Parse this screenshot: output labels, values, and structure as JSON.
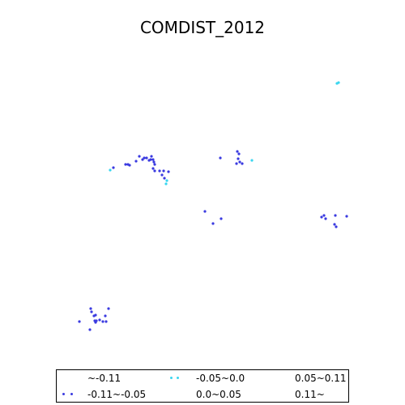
{
  "title": "COMDIST_2012",
  "legend": [
    {
      "label": "~-0.11",
      "color": ""
    },
    {
      "label": "-0.11~-0.05",
      "color": "#3a3ae0"
    },
    {
      "label": "-0.05~0.0",
      "color": "#3ad6f0"
    },
    {
      "label": "0.0~0.05",
      "color": ""
    },
    {
      "label": "0.05~0.11",
      "color": ""
    },
    {
      "label": "0.11~",
      "color": ""
    }
  ],
  "chart_data": {
    "type": "scatter",
    "series": [
      {
        "color": "#3a3ae0",
        "points": [
          [
            140,
            207
          ],
          [
            155,
            203
          ],
          [
            158,
            203
          ],
          [
            160,
            204
          ],
          [
            168,
            199
          ],
          [
            172,
            193
          ],
          [
            176,
            197
          ],
          [
            178,
            195
          ],
          [
            181,
            195
          ],
          [
            184,
            198
          ],
          [
            186,
            197
          ],
          [
            187,
            193
          ],
          [
            189,
            197
          ],
          [
            190,
            200
          ],
          [
            191,
            203
          ],
          [
            189,
            208
          ],
          [
            191,
            211
          ],
          [
            197,
            211
          ],
          [
            200,
            216
          ],
          [
            202,
            211
          ],
          [
            208,
            212
          ],
          [
            203,
            220
          ],
          [
            272,
            195
          ],
          [
            293,
            187
          ],
          [
            295,
            190
          ],
          [
            294,
            196
          ],
          [
            292,
            202
          ],
          [
            296,
            200
          ],
          [
            299,
            202
          ],
          [
            253,
            261
          ],
          [
            273,
            270
          ],
          [
            263,
            276
          ],
          [
            397,
            268
          ],
          [
            400,
            266
          ],
          [
            402,
            270
          ],
          [
            414,
            266
          ],
          [
            413,
            277
          ],
          [
            415,
            280
          ],
          [
            428,
            267
          ],
          [
            112,
            381
          ],
          [
            134,
            381
          ],
          [
            113,
            385
          ],
          [
            118,
            389
          ],
          [
            116,
            390
          ],
          [
            130,
            390
          ],
          [
            98,
            397
          ],
          [
            117,
            396
          ],
          [
            119,
            396
          ],
          [
            123,
            395
          ],
          [
            127,
            397
          ],
          [
            131,
            397
          ],
          [
            118,
            398
          ],
          [
            111,
            407
          ]
        ]
      },
      {
        "color": "#3ad6f0",
        "points": [
          [
            416,
            103
          ],
          [
            418,
            102
          ],
          [
            136,
            210
          ],
          [
            311,
            198
          ],
          [
            206,
            223
          ],
          [
            205,
            227
          ]
        ]
      }
    ]
  }
}
